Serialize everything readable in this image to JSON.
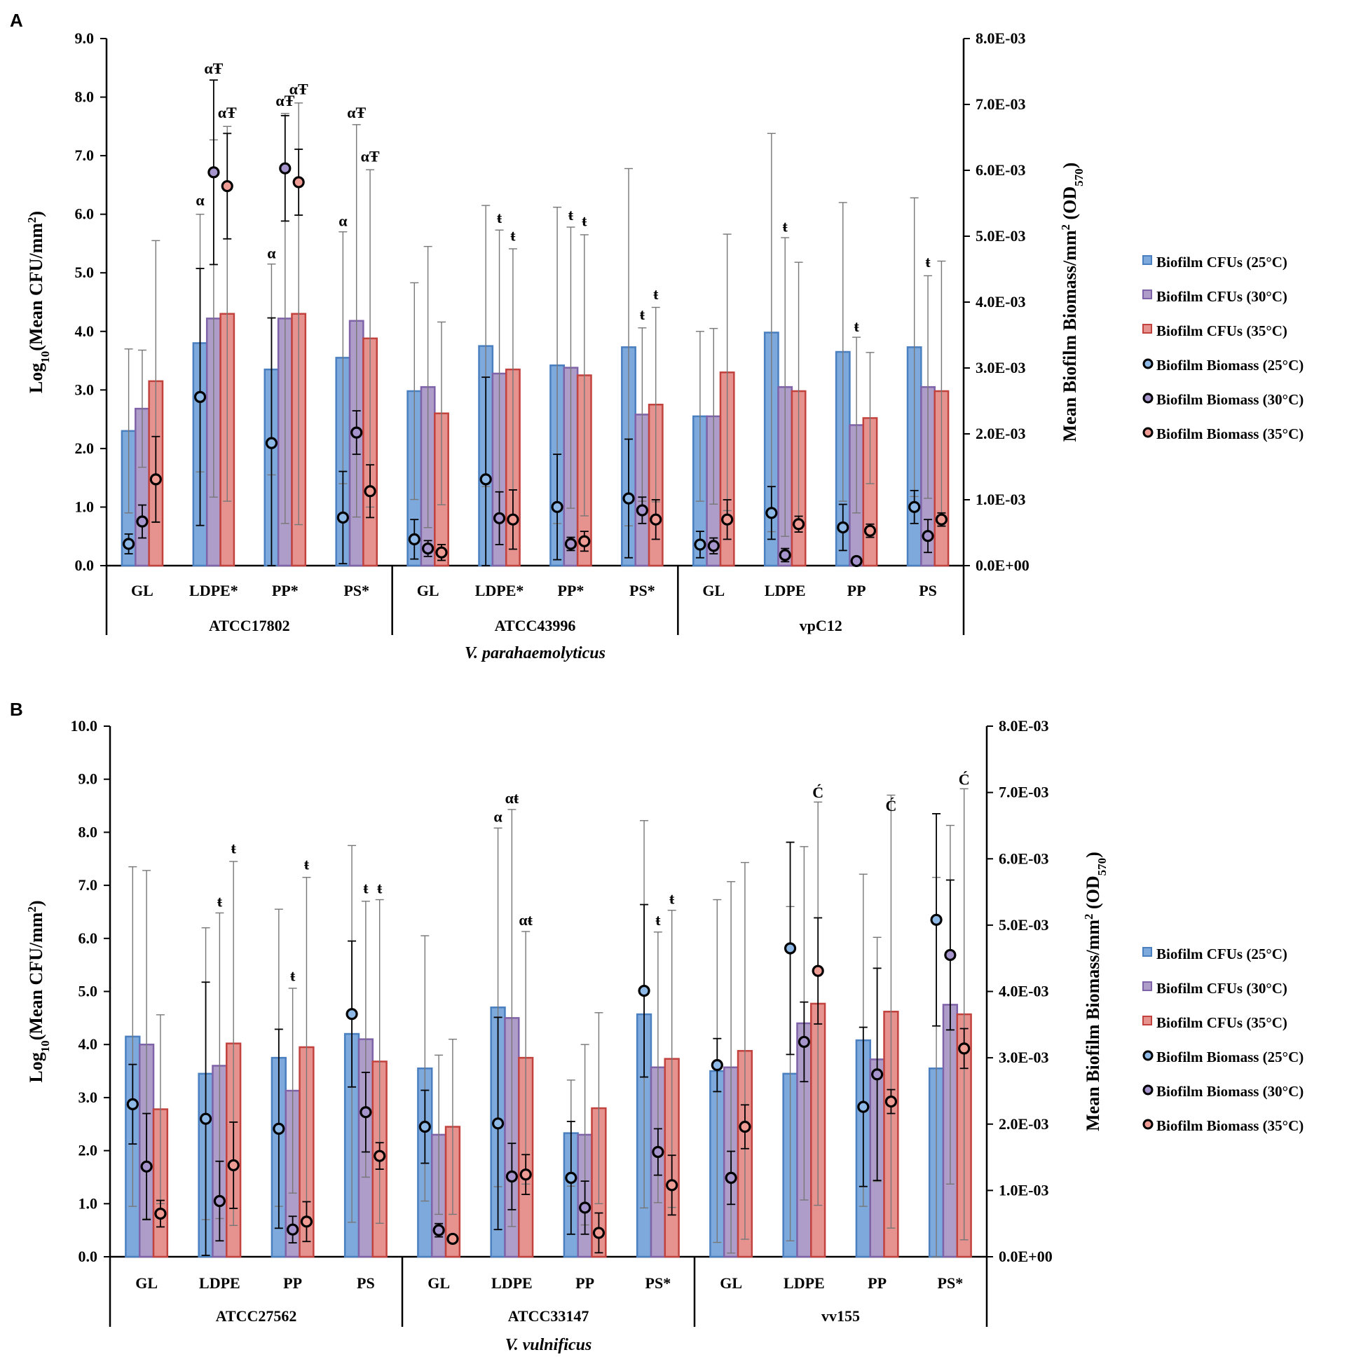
{
  "colors": {
    "cfu25": "#7ea9dc",
    "cfu25_stroke": "#4a7fc0",
    "cfu30": "#ae9cc9",
    "cfu30_stroke": "#7f63a8",
    "cfu35": "#e6928f",
    "cfu35_stroke": "#c2423e",
    "bio25": "#8eb8e6",
    "bio30": "#a595cc",
    "bio35": "#ef9c94",
    "axis": "#000000",
    "errorbar_cfu": "#777777",
    "errorbar_bio": "#000000"
  },
  "legend_labels": [
    "Biofilm CFUs (25°C)",
    "Biofilm CFUs (30°C)",
    "Biofilm CFUs (35°C)",
    "Biofilm Biomass (25°C)",
    "Biofilm Biomass (30°C)",
    "Biofilm Biomass (35°C)"
  ],
  "chart_data": [
    {
      "panel": "A",
      "type": "bar",
      "ylabel_main": "Log",
      "ylabel_sub": "10",
      "ylabel_rest": "(Mean CFU/mm",
      "ylabel_sup": "2",
      "ylabel_end": ")",
      "y2label_main": "Mean Biofilm Biomass/mm",
      "y2label_sup": "2",
      "y2label_mid": " (OD",
      "y2label_sub": "570",
      "y2label_end": ")",
      "ylim": [
        0,
        9
      ],
      "yticks": [
        "0.0",
        "1.0",
        "2.0",
        "3.0",
        "4.0",
        "5.0",
        "6.0",
        "7.0",
        "8.0",
        "9.0"
      ],
      "y2lim": [
        0,
        0.008
      ],
      "y2ticks": [
        "0.0E+00",
        "1.0E-03",
        "2.0E-03",
        "3.0E-03",
        "4.0E-03",
        "5.0E-03",
        "6.0E-03",
        "7.0E-03",
        "8.0E-03"
      ],
      "species": "V. parahaemolyticus",
      "groups": [
        {
          "name": "ATCC17802",
          "categories": [
            "GL",
            "LDPE*",
            "PP*",
            "PS*"
          ]
        },
        {
          "name": "ATCC43996",
          "categories": [
            "GL",
            "LDPE*",
            "PP*",
            "PS*"
          ]
        },
        {
          "name": "vpC12",
          "categories": [
            "GL",
            "LDPE",
            "PP",
            "PS"
          ]
        }
      ],
      "cfu_series": [
        {
          "name": "Biofilm CFUs (25°C)",
          "values": [
            2.3,
            3.8,
            3.35,
            3.55,
            2.98,
            3.75,
            3.42,
            3.73,
            2.55,
            3.98,
            3.65,
            3.73
          ],
          "err": [
            1.4,
            2.2,
            1.8,
            2.15,
            1.85,
            2.4,
            2.7,
            3.05,
            1.45,
            3.4,
            2.55,
            2.55
          ]
        },
        {
          "name": "Biofilm CFUs (30°C)",
          "values": [
            2.68,
            4.22,
            4.22,
            4.18,
            3.05,
            3.28,
            3.38,
            2.58,
            2.55,
            3.05,
            2.4,
            3.05
          ],
          "err": [
            1.0,
            3.05,
            3.5,
            3.35,
            2.4,
            2.45,
            2.4,
            1.48,
            1.5,
            2.55,
            1.5,
            1.9
          ]
        },
        {
          "name": "Biofilm CFUs (35°C)",
          "values": [
            3.15,
            4.3,
            4.3,
            3.88,
            2.6,
            3.35,
            3.25,
            2.75,
            3.3,
            2.98,
            2.52,
            2.98
          ],
          "err": [
            2.4,
            3.2,
            3.6,
            2.88,
            1.56,
            2.06,
            2.4,
            1.66,
            2.36,
            2.2,
            1.12,
            2.22
          ]
        }
      ],
      "biomass_series": [
        {
          "name": "Biofilm Biomass (25°C)",
          "values": [
            0.33,
            2.56,
            1.86,
            0.73,
            0.4,
            1.31,
            0.89,
            1.02,
            0.32,
            0.8,
            0.58,
            0.89
          ],
          "err": [
            0.15,
            1.95,
            1.9,
            0.7,
            0.3,
            1.55,
            0.8,
            0.9,
            0.2,
            0.4,
            0.35,
            0.25
          ]
        },
        {
          "name": "Biofilm Biomass (30°C)",
          "values": [
            0.67,
            5.97,
            6.03,
            2.02,
            0.26,
            0.72,
            0.33,
            0.84,
            0.3,
            0.16,
            0.07,
            0.45
          ],
          "err": [
            0.25,
            1.4,
            0.8,
            0.33,
            0.12,
            0.4,
            0.1,
            0.2,
            0.12,
            0.1,
            0.06,
            0.25
          ]
        },
        {
          "name": "Biofilm Biomass (35°C)",
          "values": [
            1.31,
            5.76,
            5.82,
            1.13,
            0.2,
            0.7,
            0.37,
            0.7,
            0.7,
            0.63,
            0.53,
            0.7
          ],
          "err": [
            0.65,
            0.8,
            0.5,
            0.4,
            0.12,
            0.45,
            0.15,
            0.3,
            0.3,
            0.12,
            0.1,
            0.1
          ]
        }
      ],
      "annotations": [
        {
          "text": "α",
          "cat": 1,
          "series": 0,
          "y": 6.15
        },
        {
          "text": "αŦ",
          "cat": 1,
          "series": 1,
          "y": 8.4
        },
        {
          "text": "αŦ",
          "cat": 1,
          "series": 2,
          "y": 7.65
        },
        {
          "text": "α",
          "cat": 2,
          "series": 0,
          "y": 5.25
        },
        {
          "text": "αŦ",
          "cat": 2,
          "series": 1,
          "y": 7.85
        },
        {
          "text": "αŦ",
          "cat": 2,
          "series": 2,
          "y": 8.05
        },
        {
          "text": "α",
          "cat": 3,
          "series": 0,
          "y": 5.8
        },
        {
          "text": "αŦ",
          "cat": 3,
          "series": 1,
          "y": 7.65
        },
        {
          "text": "αŦ",
          "cat": 3,
          "series": 2,
          "y": 6.9
        },
        {
          "text": "ŧ",
          "cat": 5,
          "series": 1,
          "y": 5.85
        },
        {
          "text": "ŧ",
          "cat": 5,
          "series": 2,
          "y": 5.55
        },
        {
          "text": "ŧ",
          "cat": 6,
          "series": 1,
          "y": 5.9
        },
        {
          "text": "ŧ",
          "cat": 6,
          "series": 2,
          "y": 5.8
        },
        {
          "text": "ŧ",
          "cat": 7,
          "series": 1,
          "y": 4.2
        },
        {
          "text": "ŧ",
          "cat": 7,
          "series": 2,
          "y": 4.55
        },
        {
          "text": "ŧ",
          "cat": 9,
          "series": 1,
          "y": 5.7
        },
        {
          "text": "ŧ",
          "cat": 10,
          "series": 1,
          "y": 4.0
        },
        {
          "text": "ŧ",
          "cat": 11,
          "series": 1,
          "y": 5.1
        }
      ]
    },
    {
      "panel": "B",
      "type": "bar",
      "ylabel_main": "Log",
      "ylabel_sub": "10",
      "ylabel_rest": "(Mean CFU/mm",
      "ylabel_sup": "2",
      "ylabel_end": ")",
      "y2label_main": "Mean Biofilm Biomass/mm",
      "y2label_sup": "2",
      "y2label_mid": " (OD",
      "y2label_sub": "570",
      "y2label_end": ")",
      "ylim": [
        0,
        10
      ],
      "yticks": [
        "0.0",
        "1.0",
        "2.0",
        "3.0",
        "4.0",
        "5.0",
        "6.0",
        "7.0",
        "8.0",
        "9.0",
        "10.0"
      ],
      "y2lim": [
        0,
        0.008
      ],
      "y2ticks": [
        "0.0E+00",
        "1.0E-03",
        "2.0E-03",
        "3.0E-03",
        "4.0E-03",
        "5.0E-03",
        "6.0E-03",
        "7.0E-03",
        "8.0E-03"
      ],
      "species": "V. vulnificus",
      "groups": [
        {
          "name": "ATCC27562",
          "categories": [
            "GL",
            "LDPE",
            "PP",
            "PS"
          ]
        },
        {
          "name": "ATCC33147",
          "categories": [
            "GL",
            "LDPE",
            "PP",
            "PS*"
          ]
        },
        {
          "name": "vv155",
          "categories": [
            "GL",
            "LDPE",
            "PP",
            "PS*"
          ]
        }
      ],
      "cfu_series": [
        {
          "name": "Biofilm CFUs (25°C)",
          "values": [
            4.15,
            3.45,
            3.75,
            4.2,
            3.55,
            4.7,
            2.33,
            4.57,
            3.5,
            3.45,
            4.08,
            3.55
          ],
          "err": [
            3.2,
            2.75,
            2.8,
            3.55,
            2.5,
            3.38,
            1.0,
            3.65,
            3.23,
            3.15,
            3.13,
            3.6
          ]
        },
        {
          "name": "Biofilm CFUs (30°C)",
          "values": [
            4.0,
            3.6,
            3.13,
            4.1,
            2.3,
            4.5,
            2.3,
            3.57,
            3.57,
            4.4,
            3.72,
            4.75
          ],
          "err": [
            3.28,
            2.88,
            1.93,
            2.6,
            1.5,
            3.93,
            1.7,
            2.55,
            3.5,
            3.33,
            2.3,
            3.38
          ]
        },
        {
          "name": "Biofilm CFUs (35°C)",
          "values": [
            2.78,
            4.02,
            3.95,
            3.68,
            2.45,
            3.75,
            2.8,
            3.73,
            3.88,
            4.77,
            4.62,
            4.57
          ],
          "err": [
            1.78,
            3.43,
            3.2,
            3.05,
            1.65,
            2.38,
            1.8,
            2.8,
            3.55,
            3.8,
            4.08,
            4.25
          ]
        }
      ],
      "biomass_series": [
        {
          "name": "Biofilm Biomass (25°C)",
          "values": [
            2.3,
            2.08,
            1.93,
            3.66,
            1.96,
            2.01,
            1.19,
            4.01,
            2.89,
            4.65,
            2.26,
            5.08
          ],
          "err": [
            0.6,
            2.06,
            1.5,
            1.1,
            0.55,
            1.6,
            0.85,
            1.3,
            0.4,
            1.6,
            1.2,
            1.6
          ]
        },
        {
          "name": "Biofilm Biomass (30°C)",
          "values": [
            1.36,
            0.84,
            0.41,
            2.18,
            0.4,
            1.21,
            0.74,
            1.58,
            1.19,
            3.24,
            2.75,
            4.55
          ],
          "err": [
            0.8,
            0.6,
            0.2,
            0.6,
            0.1,
            0.5,
            0.4,
            0.35,
            0.4,
            0.6,
            1.6,
            1.13
          ]
        },
        {
          "name": "Biofilm Biomass (35°C)",
          "values": [
            0.65,
            1.38,
            0.53,
            1.52,
            0.27,
            1.24,
            0.36,
            1.08,
            1.96,
            4.31,
            2.34,
            3.14
          ],
          "err": [
            0.2,
            0.65,
            0.3,
            0.2,
            0.05,
            0.3,
            0.3,
            0.45,
            0.33,
            0.8,
            0.18,
            0.3
          ]
        }
      ],
      "annotations": [
        {
          "text": "ŧ",
          "cat": 1,
          "series": 1,
          "y": 6.6
        },
        {
          "text": "ŧ",
          "cat": 1,
          "series": 2,
          "y": 7.6
        },
        {
          "text": "ŧ",
          "cat": 2,
          "series": 1,
          "y": 5.2
        },
        {
          "text": "ŧ",
          "cat": 2,
          "series": 2,
          "y": 7.3
        },
        {
          "text": "ŧ",
          "cat": 3,
          "series": 1,
          "y": 6.85
        },
        {
          "text": "ŧ",
          "cat": 3,
          "series": 2,
          "y": 6.85
        },
        {
          "text": "α",
          "cat": 5,
          "series": 0,
          "y": 8.2
        },
        {
          "text": "αŧ",
          "cat": 5,
          "series": 1,
          "y": 8.55
        },
        {
          "text": "αŧ",
          "cat": 5,
          "series": 2,
          "y": 6.25
        },
        {
          "text": "ŧ",
          "cat": 7,
          "series": 1,
          "y": 6.25
        },
        {
          "text": "ŧ",
          "cat": 7,
          "series": 2,
          "y": 6.65
        },
        {
          "text": "Ć",
          "cat": 9,
          "series": 2,
          "y": 8.65
        },
        {
          "text": "Ć",
          "cat": 10,
          "series": 2,
          "y": 8.4
        },
        {
          "text": "Ć",
          "cat": 11,
          "series": 2,
          "y": 8.9
        }
      ]
    }
  ]
}
